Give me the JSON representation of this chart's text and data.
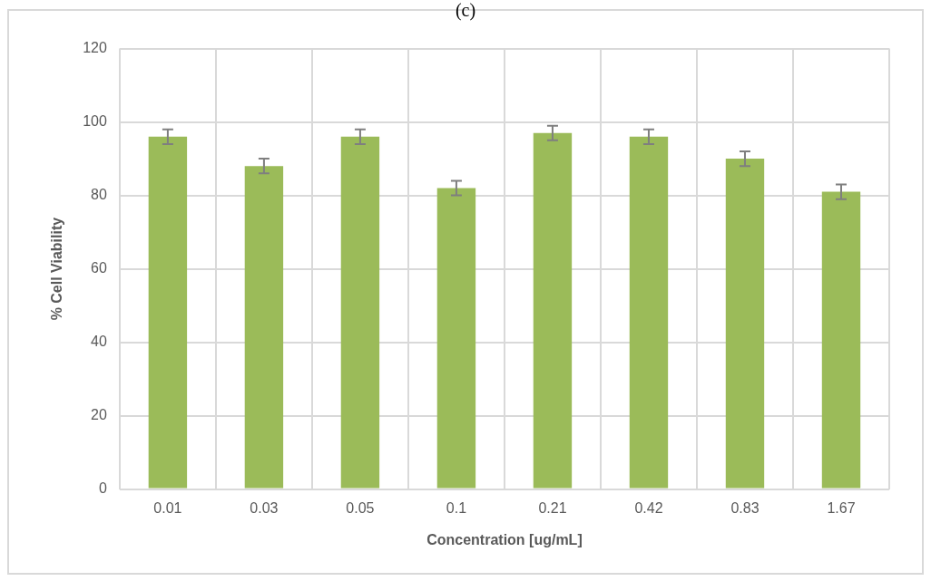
{
  "chart_data": {
    "type": "bar",
    "title": "(c)",
    "xlabel": "Concentration [ug/mL]",
    "ylabel": "% Cell Viability",
    "categories": [
      "0.01",
      "0.03",
      "0.05",
      "0.1",
      "0.21",
      "0.42",
      "0.83",
      "1.67"
    ],
    "values": [
      96,
      88,
      96,
      82,
      97,
      96,
      90,
      81
    ],
    "errors": [
      2,
      2,
      2,
      2,
      2,
      2,
      2,
      2
    ],
    "color": "#9bbb59",
    "ylim": [
      0,
      120
    ],
    "yticks": [
      0,
      20,
      40,
      60,
      80,
      100,
      120
    ],
    "grid": true,
    "legend": false
  }
}
